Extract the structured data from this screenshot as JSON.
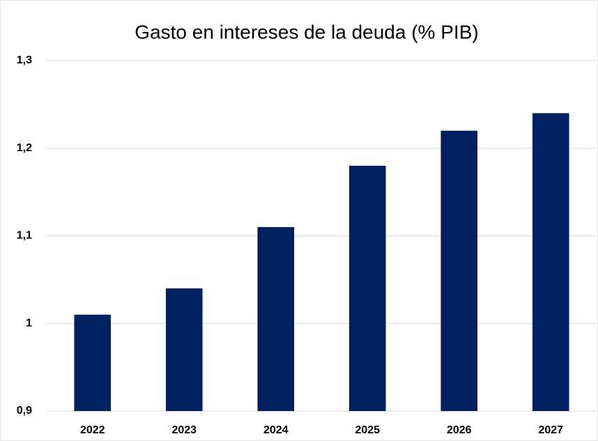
{
  "chart_data": {
    "type": "bar",
    "title": "Gasto en intereses de la deuda (% PIB)",
    "categories": [
      "2022",
      "2023",
      "2024",
      "2025",
      "2026",
      "2027"
    ],
    "values": [
      1.01,
      1.04,
      1.11,
      1.18,
      1.22,
      1.24
    ],
    "color": "#002060",
    "ylim": [
      0.9,
      1.3
    ],
    "yticks": [
      {
        "value": 0.9,
        "label": "0,9"
      },
      1,
      {
        "value": 1.1,
        "label": "1,1"
      },
      {
        "value": 1.2,
        "label": "1,2"
      },
      {
        "value": 1.3,
        "label": "1,3"
      }
    ],
    "grid": true
  }
}
